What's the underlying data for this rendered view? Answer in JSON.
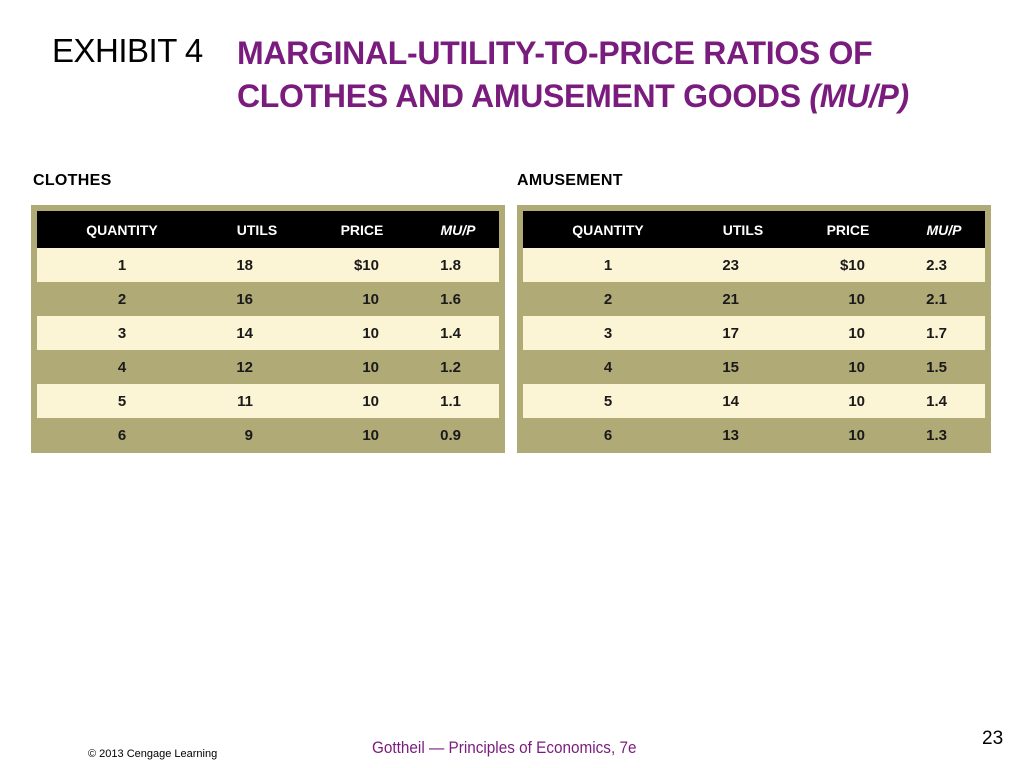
{
  "header": {
    "exhibit_label": "EXHIBIT 4",
    "title_line1": "MARGINAL-UTILITY-TO-PRICE RATIOS OF",
    "title_line2": "CLOTHES AND AMUSEMENT GOODS",
    "title_emphasis": "(MU/P)"
  },
  "columns": [
    "QUANTITY",
    "UTILS",
    "PRICE",
    "MU/P"
  ],
  "clothes": {
    "label": "CLOTHES",
    "rows": [
      [
        "1",
        "18",
        "$10",
        "1.8"
      ],
      [
        "2",
        "16",
        "10",
        "1.6"
      ],
      [
        "3",
        "14",
        "10",
        "1.4"
      ],
      [
        "4",
        "12",
        "10",
        "1.2"
      ],
      [
        "5",
        "11",
        "10",
        "1.1"
      ],
      [
        "6",
        "9",
        "10",
        "0.9"
      ]
    ]
  },
  "amusement": {
    "label": "AMUSEMENT",
    "rows": [
      [
        "1",
        "23",
        "$10",
        "2.3"
      ],
      [
        "2",
        "21",
        "10",
        "2.1"
      ],
      [
        "3",
        "17",
        "10",
        "1.7"
      ],
      [
        "4",
        "15",
        "10",
        "1.5"
      ],
      [
        "5",
        "14",
        "10",
        "1.4"
      ],
      [
        "6",
        "13",
        "10",
        "1.3"
      ]
    ]
  },
  "colors": {
    "title": "#7a1c7e",
    "header_bg": "#000000",
    "light_row": "#fbf4d5",
    "dark_row": "#b0aa77"
  },
  "footer": {
    "page_number": "23",
    "book": "Gottheil — Principles of Economics, 7e",
    "copyright": "© 2013 Cengage Learning"
  }
}
